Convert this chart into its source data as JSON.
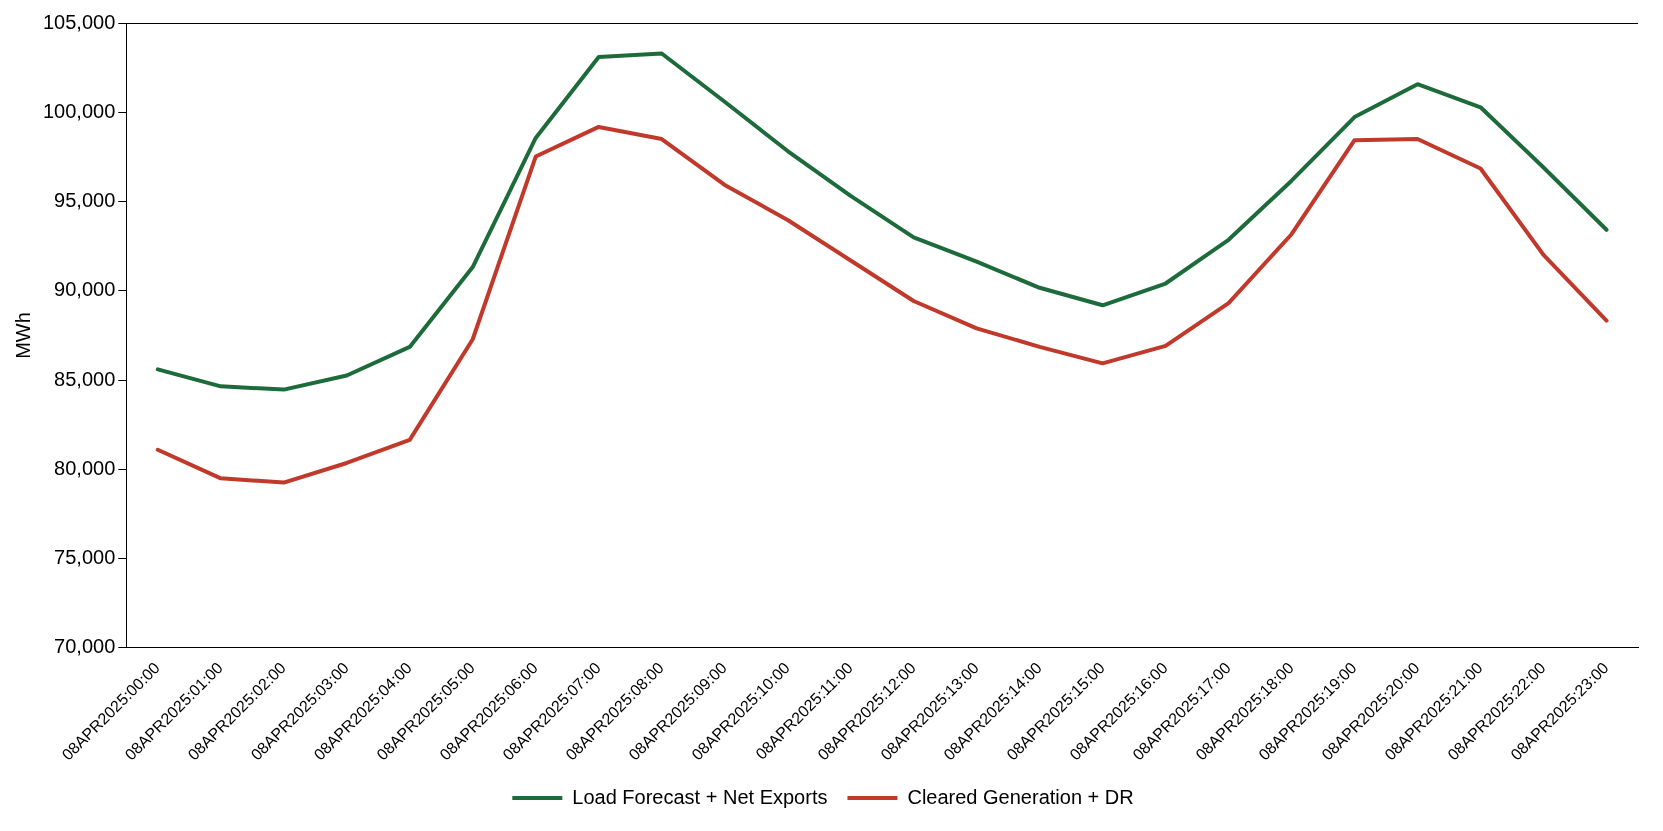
{
  "chart_data": {
    "type": "line",
    "ylabel": "MWh",
    "categories": [
      "08APR2025:00:00",
      "08APR2025:01:00",
      "08APR2025:02:00",
      "08APR2025:03:00",
      "08APR2025:04:00",
      "08APR2025:05:00",
      "08APR2025:06:00",
      "08APR2025:07:00",
      "08APR2025:08:00",
      "08APR2025:09:00",
      "08APR2025:10:00",
      "08APR2025:11:00",
      "08APR2025:12:00",
      "08APR2025:13:00",
      "08APR2025:14:00",
      "08APR2025:15:00",
      "08APR2025:16:00",
      "08APR2025:17:00",
      "08APR2025:18:00",
      "08APR2025:19:00",
      "08APR2025:20:00",
      "08APR2025:21:00",
      "08APR2025:22:00",
      "08APR2025:23:00"
    ],
    "series": [
      {
        "name": "Load Forecast + Net Exports",
        "color": "#1d6b3a",
        "values": [
          85600,
          84650,
          84470,
          85260,
          86860,
          91330,
          98560,
          103100,
          103290,
          100590,
          97830,
          95320,
          92990,
          91640,
          90170,
          89190,
          90410,
          92860,
          96170,
          99730,
          101570,
          100280,
          96910,
          93420
        ]
      },
      {
        "name": "Cleared Generation + DR",
        "color": "#c0392b",
        "values": [
          81100,
          79500,
          79260,
          80360,
          81650,
          87290,
          97520,
          99180,
          98500,
          95930,
          93970,
          91700,
          89430,
          87900,
          86860,
          85940,
          86920,
          89310,
          93170,
          98440,
          98500,
          96850,
          92010,
          88330
        ]
      }
    ],
    "ylim": [
      70000,
      105000
    ],
    "yticks": [
      {
        "value": 70000,
        "label": "70,000"
      },
      {
        "value": 75000,
        "label": "75,000"
      },
      {
        "value": 80000,
        "label": "80,000"
      },
      {
        "value": 85000,
        "label": "85,000"
      },
      {
        "value": 90000,
        "label": "90,000"
      },
      {
        "value": 95000,
        "label": "95,000"
      },
      {
        "value": 100000,
        "label": "100,000"
      },
      {
        "value": 105000,
        "label": "105,000"
      }
    ],
    "grid": false,
    "legend": "bottom",
    "marker": "none",
    "line_style": "solid"
  }
}
